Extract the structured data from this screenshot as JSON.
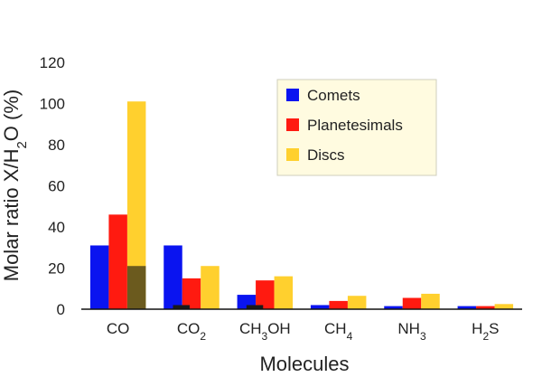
{
  "chart_data": {
    "type": "bar",
    "title": "",
    "xlabel": "Molecules",
    "ylabel": {
      "prefix": "Molar ratio X/H",
      "sub": "2",
      "suffix": "O (%)"
    },
    "ylim": [
      0,
      120
    ],
    "yticks": [
      "0",
      "20",
      "40",
      "60",
      "80",
      "100",
      "120"
    ],
    "grid": false,
    "legend_position": "top-right",
    "categories": [
      {
        "main": "CO",
        "sub": "",
        "tail": ""
      },
      {
        "main": "CO",
        "sub": "2",
        "tail": ""
      },
      {
        "main": "CH",
        "sub": "3",
        "tail": "OH"
      },
      {
        "main": "CH",
        "sub": "4",
        "tail": ""
      },
      {
        "main": "NH",
        "sub": "3",
        "tail": ""
      },
      {
        "main": "H",
        "sub": "2",
        "tail": "S"
      }
    ],
    "series": [
      {
        "name": "Comets",
        "color": "#0a14f0",
        "values": [
          31,
          31,
          7,
          2,
          1.5,
          1.5
        ]
      },
      {
        "name": "Planetesimals",
        "color": "#ff1a10",
        "values": [
          46,
          15,
          14,
          4,
          5.5,
          1.5
        ]
      },
      {
        "name": "Discs",
        "color": "#ffd02e",
        "values": [
          101,
          21,
          16,
          6.5,
          7.5,
          2.5
        ]
      }
    ],
    "overlay": {
      "color": "#6b5a1e",
      "values": [
        21,
        2,
        2,
        0,
        0,
        0
      ]
    }
  }
}
